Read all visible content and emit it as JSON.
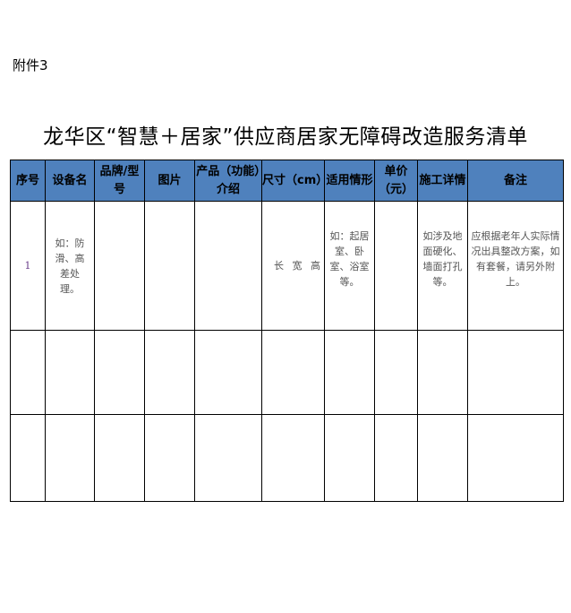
{
  "attachment": "附件3",
  "title": "龙华区“智慧＋居家”供应商居家无障碍改造服务清单",
  "header_color": "#4f81bd",
  "columns": [
    "序号",
    "设备名",
    "品牌/型号",
    "图片",
    "产品（功能）介绍",
    "尺寸（cm）",
    "适用情形",
    "单价（元）",
    "施工详情",
    "备注"
  ],
  "rows": [
    {
      "no": "1",
      "device": "如：防滑、高差处理。",
      "brand": "",
      "image": "",
      "intro": "",
      "size": "长 宽 高",
      "scene": "如：起居室、卧室、浴室等。",
      "price": "",
      "construction": "如涉及地面硬化、墙面打孔等。",
      "note": "应根据老年人实际情况出具整改方案，如有套餐，请另外附上。"
    },
    {
      "no": "",
      "device": "",
      "brand": "",
      "image": "",
      "intro": "",
      "size": "",
      "scene": "",
      "price": "",
      "construction": "",
      "note": ""
    },
    {
      "no": "",
      "device": "",
      "brand": "",
      "image": "",
      "intro": "",
      "size": "",
      "scene": "",
      "price": "",
      "construction": "",
      "note": ""
    }
  ]
}
